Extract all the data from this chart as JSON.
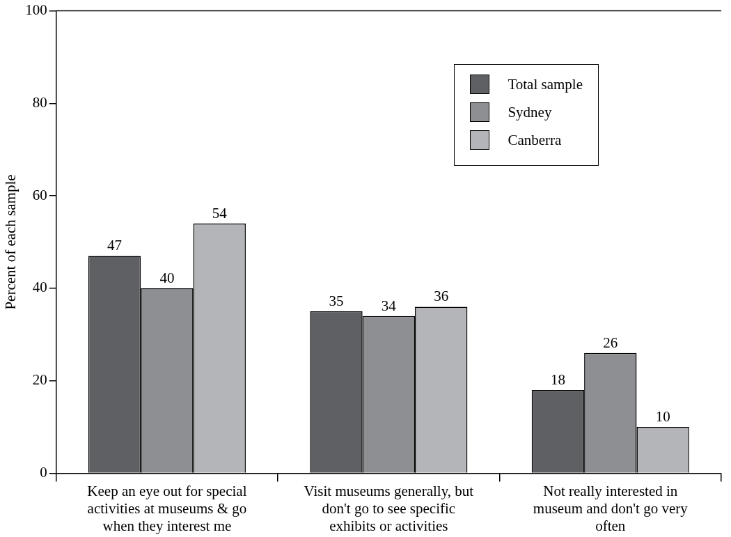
{
  "chart_data": {
    "type": "bar",
    "ylabel": "Percent of each sample",
    "categories": [
      "Keep an eye out for special activities at museums & go when they interest me",
      "Visit museums generally, but don't go to see specific exhibits or activities",
      "Not really interested in museum and don't go very often"
    ],
    "series": [
      {
        "name": "Total sample",
        "color": "#5f6063",
        "values": [
          47,
          35,
          18
        ]
      },
      {
        "name": "Sydney",
        "color": "#8e8f93",
        "values": [
          40,
          34,
          26
        ]
      },
      {
        "name": "Canberra",
        "color": "#b4b5b8",
        "values": [
          54,
          36,
          10
        ]
      }
    ],
    "ylim": [
      0,
      100
    ],
    "yticks": [
      0,
      20,
      40,
      60,
      80,
      100
    ],
    "data_labels": true,
    "legend": "top right"
  }
}
